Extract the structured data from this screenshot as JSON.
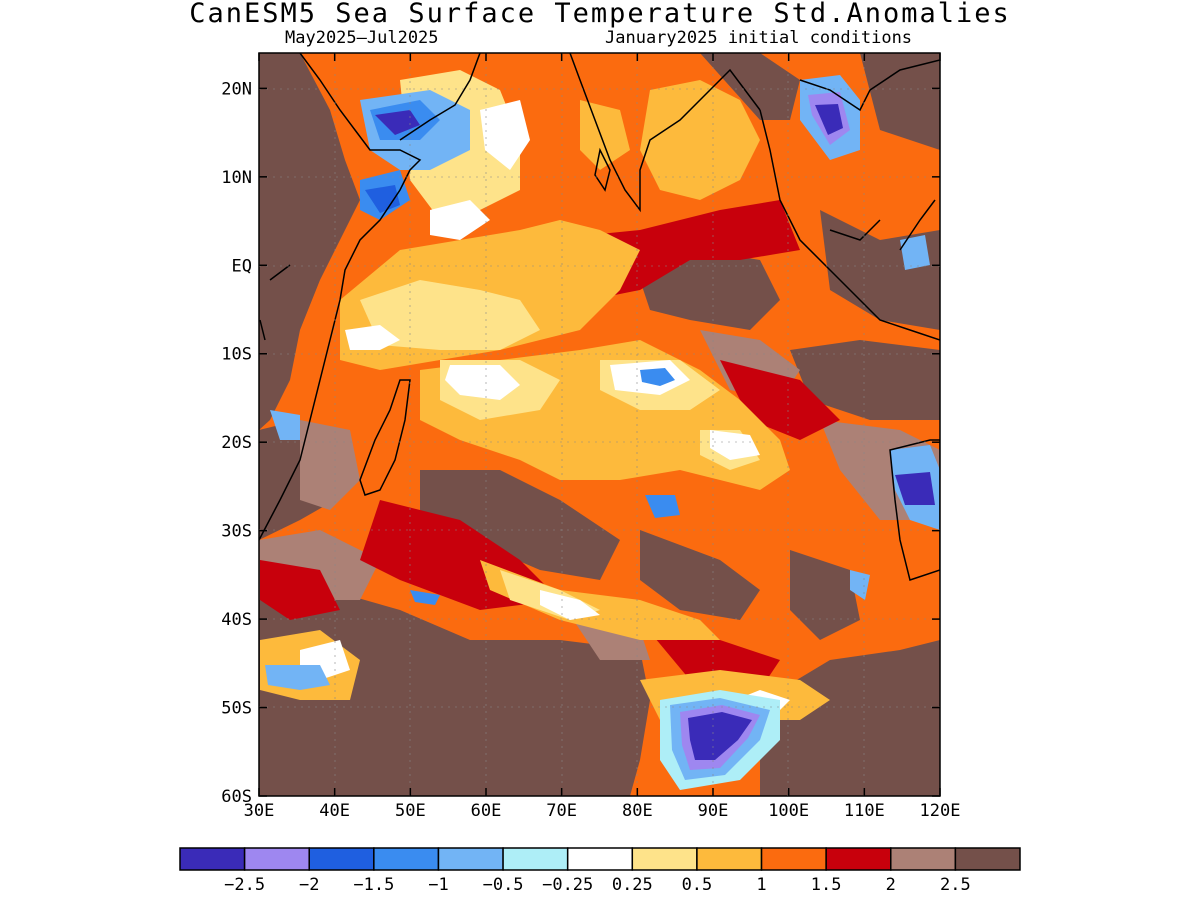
{
  "header": {
    "title": "CanESM5 Sea Surface Temperature Std.Anomalies",
    "period": "May2025–Jul2025",
    "initial_conditions": "January2025 initial conditions"
  },
  "map": {
    "lon_labels": [
      "30E",
      "40E",
      "50E",
      "60E",
      "70E",
      "80E",
      "90E",
      "100E",
      "110E",
      "120E"
    ],
    "lat_labels": [
      "20N",
      "10N",
      "EQ",
      "10S",
      "20S",
      "30S",
      "40S",
      "50S",
      "60S"
    ],
    "lon_range": [
      30,
      120
    ],
    "lat_range": [
      -60,
      24
    ]
  },
  "colorbar": {
    "colors": [
      "#3a2bb8",
      "#9e87f0",
      "#1f5fe0",
      "#3a8cf0",
      "#72b4f5",
      "#aeeef7",
      "#ffffff",
      "#fee38a",
      "#fdba3c",
      "#fb6b0f",
      "#c8000c",
      "#ac8176",
      "#74504a"
    ],
    "labels": [
      "−2.5",
      "−2",
      "−1.5",
      "−1",
      "−0.5",
      "−0.25",
      "0.25",
      "0.5",
      "1",
      "1.5",
      "2",
      "2.5"
    ]
  }
}
